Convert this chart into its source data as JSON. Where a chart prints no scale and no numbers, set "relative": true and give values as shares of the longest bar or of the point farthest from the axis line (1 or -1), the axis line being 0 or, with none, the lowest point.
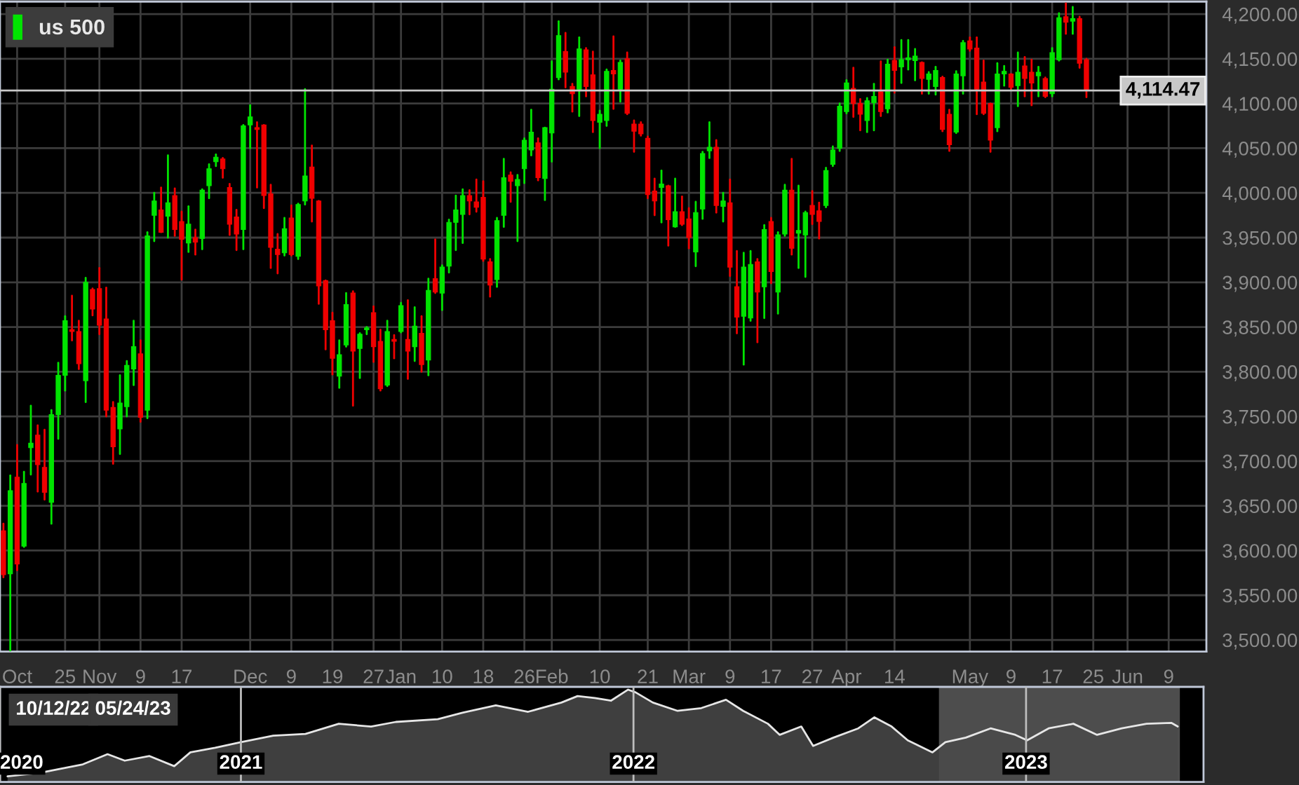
{
  "chart_data": [
    {
      "type": "candlestick",
      "legend": "top left",
      "grid": true,
      "categories": [
        null,
        null,
        "Oct",
        null,
        null,
        null,
        null,
        null,
        null,
        "25",
        null,
        null,
        null,
        null,
        "Nov",
        null,
        null,
        null,
        null,
        null,
        "9",
        null,
        null,
        null,
        null,
        null,
        "17",
        null,
        null,
        null,
        null,
        null,
        null,
        null,
        null,
        null,
        "Dec",
        null,
        null,
        null,
        null,
        null,
        "9",
        null,
        null,
        null,
        null,
        null,
        "19",
        null,
        null,
        null,
        null,
        null,
        "27",
        null,
        null,
        null,
        "Jan",
        null,
        null,
        null,
        null,
        null,
        "10",
        null,
        null,
        null,
        null,
        null,
        "18",
        null,
        null,
        null,
        null,
        null,
        "26",
        null,
        null,
        null,
        "Feb",
        null,
        null,
        null,
        null,
        null,
        null,
        "10",
        null,
        null,
        null,
        null,
        null,
        null,
        "21",
        null,
        null,
        null,
        null,
        null,
        "Mar",
        null,
        null,
        null,
        null,
        null,
        "9",
        null,
        null,
        null,
        null,
        null,
        "17",
        null,
        null,
        null,
        null,
        null,
        "27",
        null,
        null,
        null,
        null,
        "Apr",
        null,
        null,
        null,
        null,
        null,
        null,
        "14",
        null,
        null,
        null,
        null,
        null,
        null,
        null,
        null,
        null,
        null,
        "May",
        null,
        null,
        null,
        null,
        null,
        "9",
        null,
        null,
        null,
        null,
        null,
        "17",
        null,
        null,
        null,
        null,
        null,
        "25",
        null,
        null,
        null,
        null,
        "Jun",
        null,
        null,
        null,
        null,
        null,
        "9",
        null,
        null,
        null,
        null,
        null
      ],
      "series": [
        {
          "name": "us 500",
          "color": "#00e400",
          "ohlc": [
            [
              3622,
              3630,
              3570,
              3573
            ],
            [
              3574,
              3684,
              3488,
              3667
            ],
            [
              3682,
              3718,
              3578,
              3585
            ],
            [
              3605,
              3688,
              3604,
              3675
            ],
            [
              3715,
              3762,
              3685,
              3720
            ],
            [
              3729,
              3740,
              3666,
              3696
            ],
            [
              3693,
              3735,
              3657,
              3665
            ],
            [
              3654,
              3757,
              3630,
              3752
            ],
            [
              3752,
              3810,
              3725,
              3796
            ],
            [
              3796,
              3862,
              3779,
              3857
            ],
            [
              3847,
              3885,
              3835,
              3845
            ],
            [
              3845,
              3857,
              3803,
              3809
            ],
            [
              3790,
              3905,
              3766,
              3900
            ],
            [
              3892,
              3893,
              3863,
              3870
            ],
            [
              3893,
              3916,
              3842,
              3852
            ],
            [
              3859,
              3894,
              3750,
              3757
            ],
            [
              3760,
              3766,
              3697,
              3716
            ],
            [
              3736,
              3796,
              3708,
              3765
            ],
            [
              3761,
              3812,
              3750,
              3807
            ],
            [
              3803,
              3857,
              3785,
              3828
            ],
            [
              3820,
              3835,
              3744,
              3749
            ],
            [
              3757,
              3956,
              3748,
              3952
            ],
            [
              3975,
              4000,
              3946,
              3991
            ],
            [
              3981,
              4006,
              3956,
              3956
            ],
            [
              3974,
              4042,
              3950,
              3989
            ],
            [
              3997,
              4005,
              3952,
              3959
            ],
            [
              3968,
              3979,
              3903,
              3948
            ],
            [
              3944,
              3985,
              3934,
              3965
            ],
            [
              3950,
              3959,
              3931,
              3945
            ],
            [
              3949,
              4004,
              3937,
              4003
            ],
            [
              4008,
              4032,
              3994,
              4027
            ],
            [
              4035,
              4043,
              4030,
              4040
            ],
            [
              4038,
              4039,
              4017,
              4027
            ],
            [
              4006,
              4010,
              3953,
              3965
            ],
            [
              3973,
              3981,
              3936,
              3954
            ],
            [
              3959,
              4076,
              3937,
              4075
            ],
            [
              4076,
              4098,
              4050,
              4085
            ],
            [
              4073,
              4079,
              4006,
              4071
            ],
            [
              4076,
              4076,
              3983,
              3997
            ],
            [
              3999,
              4009,
              3916,
              3939
            ],
            [
              3937,
              3954,
              3910,
              3931
            ],
            [
              3933,
              3972,
              3930,
              3960
            ],
            [
              3972,
              3986,
              3930,
              3931
            ],
            [
              3929,
              3988,
              3926,
              3987
            ],
            [
              3991,
              4116,
              3987,
              4019
            ],
            [
              4029,
              4053,
              3968,
              3994
            ],
            [
              3991,
              3991,
              3876,
              3896
            ],
            [
              3902,
              3902,
              3825,
              3847
            ],
            [
              3857,
              3866,
              3797,
              3815
            ],
            [
              3795,
              3835,
              3782,
              3819
            ],
            [
              3830,
              3888,
              3828,
              3875
            ],
            [
              3888,
              3890,
              3762,
              3823
            ],
            [
              3826,
              3843,
              3793,
              3842
            ],
            [
              3847,
              3850,
              3842,
              3849
            ],
            [
              3866,
              3873,
              3811,
              3828
            ],
            [
              3834,
              3847,
              3779,
              3781
            ],
            [
              3785,
              3857,
              3784,
              3845
            ],
            [
              3836,
              3841,
              3815,
              3834
            ],
            [
              3845,
              3877,
              3844,
              3874
            ],
            [
              3836,
              3880,
              3792,
              3823
            ],
            [
              3828,
              3872,
              3812,
              3851
            ],
            [
              3843,
              3862,
              3800,
              3808
            ],
            [
              3813,
              3904,
              3796,
              3891
            ],
            [
              3904,
              3948,
              3888,
              3889
            ],
            [
              3888,
              3919,
              3869,
              3917
            ],
            [
              3918,
              3970,
              3911,
              3967
            ],
            [
              3967,
              3997,
              3936,
              3981
            ],
            [
              3976,
              4004,
              3944,
              3997
            ],
            [
              3997,
              4003,
              3976,
              3991
            ],
            [
              3990,
              4015,
              3979,
              3984
            ],
            [
              3995,
              4013,
              3924,
              3926
            ],
            [
              3923,
              3926,
              3884,
              3897
            ],
            [
              3903,
              3972,
              3895,
              3969
            ],
            [
              3975,
              4038,
              3962,
              4017
            ],
            [
              4020,
              4023,
              3990,
              4013
            ],
            [
              4008,
              4020,
              3946,
              4015
            ],
            [
              4027,
              4061,
              4011,
              4059
            ],
            [
              4048,
              4093,
              4042,
              4068
            ],
            [
              4056,
              4061,
              4014,
              4017
            ],
            [
              4016,
              4073,
              3992,
              4073
            ],
            [
              4067,
              4147,
              4035,
              4116
            ],
            [
              4129,
              4192,
              4127,
              4176
            ],
            [
              4158,
              4179,
              4118,
              4135
            ],
            [
              4119,
              4122,
              4091,
              4111
            ],
            [
              4116,
              4174,
              4086,
              4161
            ],
            [
              4160,
              4162,
              4108,
              4119
            ],
            [
              4132,
              4158,
              4068,
              4081
            ],
            [
              4079,
              4092,
              4050,
              4088
            ],
            [
              4081,
              4138,
              4075,
              4136
            ],
            [
              4137,
              4175,
              4094,
              4133
            ],
            [
              4116,
              4148,
              4102,
              4146
            ],
            [
              4150,
              4157,
              4088,
              4089
            ],
            [
              4077,
              4081,
              4046,
              4069
            ],
            [
              4077,
              4079,
              4064,
              4066
            ],
            [
              4061,
              4063,
              3994,
              3998
            ],
            [
              4002,
              4016,
              3975,
              3991
            ],
            [
              4006,
              4025,
              3967,
              4010
            ],
            [
              4008,
              4008,
              3941,
              3970
            ],
            [
              3962,
              4016,
              3962,
              3979
            ],
            [
              3979,
              3996,
              3964,
              3965
            ],
            [
              3971,
              3983,
              3938,
              3950
            ],
            [
              3934,
              3990,
              3918,
              3978
            ],
            [
              3982,
              4046,
              3971,
              4044
            ],
            [
              4047,
              4079,
              4039,
              4051
            ],
            [
              4051,
              4059,
              3978,
              3986
            ],
            [
              3985,
              4000,
              3968,
              3991
            ],
            [
              3989,
              4015,
              3907,
              3917
            ],
            [
              3895,
              3935,
              3843,
              3861
            ],
            [
              3862,
              3933,
              3808,
              3917
            ],
            [
              3860,
              3935,
              3857,
              3920
            ],
            [
              3923,
              3926,
              3833,
              3889
            ],
            [
              3895,
              3964,
              3860,
              3959
            ],
            [
              3968,
              3972,
              3899,
              3912
            ],
            [
              3889,
              3956,
              3865,
              3953
            ],
            [
              3954,
              4009,
              3952,
              4003
            ],
            [
              4003,
              4038,
              3931,
              3938
            ],
            [
              3955,
              4008,
              3916,
              3958
            ],
            [
              3953,
              3979,
              3906,
              3978
            ],
            [
              3986,
              4002,
              3965,
              3976
            ],
            [
              3980,
              3989,
              3949,
              3968
            ],
            [
              3986,
              4028,
              3984,
              4025
            ],
            [
              4032,
              4052,
              4030,
              4048
            ],
            [
              4050,
              4100,
              4047,
              4097
            ],
            [
              4091,
              4126,
              4089,
              4123
            ],
            [
              4117,
              4140,
              4085,
              4100
            ],
            [
              4100,
              4105,
              4070,
              4088
            ],
            [
              4081,
              4106,
              4068,
              4103
            ],
            [
              4101,
              4122,
              4070,
              4108
            ],
            [
              4113,
              4147,
              4086,
              4091
            ],
            [
              4094,
              4149,
              4090,
              4144
            ],
            [
              4148,
              4163,
              4112,
              4137
            ],
            [
              4141,
              4171,
              4123,
              4149
            ],
            [
              4149,
              4171,
              4138,
              4151
            ],
            [
              4148,
              4161,
              4126,
              4153
            ],
            [
              4146,
              4146,
              4111,
              4128
            ],
            [
              4127,
              4135,
              4111,
              4133
            ],
            [
              4119,
              4141,
              4110,
              4137
            ],
            [
              4129,
              4130,
              4069,
              4071
            ],
            [
              4088,
              4093,
              4047,
              4054
            ],
            [
              4068,
              4136,
              4067,
              4133
            ],
            [
              4131,
              4170,
              4111,
              4168
            ],
            [
              4170,
              4174,
              4159,
              4161
            ],
            [
              4162,
              4174,
              4088,
              4116
            ],
            [
              4124,
              4148,
              4088,
              4089
            ],
            [
              4100,
              4100,
              4046,
              4059
            ],
            [
              4073,
              4145,
              4069,
              4133
            ],
            [
              4133,
              4142,
              4120,
              4136
            ],
            [
              4133,
              4133,
              4115,
              4118
            ],
            [
              4120,
              4157,
              4097,
              4135
            ],
            [
              4142,
              4152,
              4108,
              4128
            ],
            [
              4135,
              4149,
              4098,
              4123
            ],
            [
              4131,
              4141,
              4108,
              4135
            ],
            [
              4128,
              4129,
              4107,
              4108
            ],
            [
              4111,
              4162,
              4108,
              4157
            ],
            [
              4149,
              4201,
              4148,
              4196
            ],
            [
              4197,
              4212,
              4178,
              4191
            ],
            [
              4192,
              4208,
              4178,
              4195
            ],
            [
              4195,
              4197,
              4140,
              4145
            ],
            [
              4149,
              4150,
              4107,
              4114.47
            ],
            null,
            null,
            null,
            null,
            null,
            null,
            null,
            null,
            null,
            null,
            null,
            null,
            null,
            null,
            null,
            null,
            null
          ],
          "colors": [
            "#f00000",
            "#00e400",
            "#f00000",
            "#00e400",
            "#00e400",
            "#f00000",
            "#f00000",
            "#00e400",
            "#00e400",
            "#00e400",
            "#f00000",
            "#f00000",
            "#00e400",
            "#f00000",
            "#f00000",
            "#f00000",
            "#f00000",
            "#00e400",
            "#00e400",
            "#00e400",
            "#f00000",
            "#00e400",
            "#00e400",
            "#f00000",
            "#00e400",
            "#f00000",
            "#f00000",
            "#00e400",
            "#f00000",
            "#00e400",
            "#00e400",
            "#00e400",
            "#f00000",
            "#f00000",
            "#f00000",
            "#00e400",
            "#00e400",
            "#f00000",
            "#f00000",
            "#f00000",
            "#f00000",
            "#00e400",
            "#f00000",
            "#00e400",
            "#00e400",
            "#f00000",
            "#f00000",
            "#f00000",
            "#f00000",
            "#00e400",
            "#00e400",
            "#f00000",
            "#00e400",
            "#00e400",
            "#f00000",
            "#f00000",
            "#00e400",
            "#f00000",
            "#00e400",
            "#f00000",
            "#00e400",
            "#f00000",
            "#00e400",
            "#f00000",
            "#00e400",
            "#00e400",
            "#00e400",
            "#00e400",
            "#f00000",
            "#f00000",
            "#f00000",
            "#f00000",
            "#00e400",
            "#00e400",
            "#f00000",
            "#00e400",
            "#00e400",
            "#00e400",
            "#f00000",
            "#00e400",
            "#00e400",
            "#00e400",
            "#f00000",
            "#f00000",
            "#00e400",
            "#f00000",
            "#f00000",
            "#00e400",
            "#00e400",
            "#f00000",
            "#00e400",
            "#f00000",
            "#f00000",
            "#f00000",
            "#f00000",
            "#f00000",
            "#00e400",
            "#f00000",
            "#00e400",
            "#f00000",
            "#f00000",
            "#00e400",
            "#00e400",
            "#00e400",
            "#f00000",
            "#00e400",
            "#f00000",
            "#f00000",
            "#00e400",
            "#00e400",
            "#f00000",
            "#00e400",
            "#f00000",
            "#00e400",
            "#00e400",
            "#f00000",
            "#00e400",
            "#00e400",
            "#f00000",
            "#f00000",
            "#00e400",
            "#00e400",
            "#00e400",
            "#00e400",
            "#f00000",
            "#f00000",
            "#00e400",
            "#00e400",
            "#f00000",
            "#00e400",
            "#f00000",
            "#00e400",
            "#00e400",
            "#00e400",
            "#f00000",
            "#00e400",
            "#00e400",
            "#f00000",
            "#f00000",
            "#00e400",
            "#00e400",
            "#f00000",
            "#f00000",
            "#f00000",
            "#f00000",
            "#00e400",
            "#00e400",
            "#f00000",
            "#00e400",
            "#f00000",
            "#f00000",
            "#00e400",
            "#f00000",
            "#00e400",
            "#00e400",
            "#f00000",
            "#00e400",
            "#f00000",
            "#f00000",
            null,
            null,
            null,
            null,
            null,
            null,
            null,
            null,
            null,
            null,
            null,
            null,
            null,
            null,
            null,
            null,
            null
          ]
        }
      ],
      "ylim": [
        3487,
        4214
      ],
      "yticks": [
        {
          "value": 3500,
          "label": "3,500.00"
        },
        {
          "value": 3550,
          "label": "3,550.00"
        },
        {
          "value": 3600,
          "label": "3,600.00"
        },
        {
          "value": 3650,
          "label": "3,650.00"
        },
        {
          "value": 3700,
          "label": "3,700.00"
        },
        {
          "value": 3750,
          "label": "3,750.00"
        },
        {
          "value": 3800,
          "label": "3,800.00"
        },
        {
          "value": 3850,
          "label": "3,850.00"
        },
        {
          "value": 3900,
          "label": "3,900.00"
        },
        {
          "value": 3950,
          "label": "3,950.00"
        },
        {
          "value": 4000,
          "label": "4,000.00"
        },
        {
          "value": 4050,
          "label": "4,050.00"
        },
        {
          "value": 4100,
          "label": "4,100.00"
        },
        {
          "value": 4150,
          "label": "4,150.00"
        },
        {
          "value": 4200,
          "label": "4,200.00"
        }
      ],
      "ref_lines": [
        {
          "axis": "y",
          "value": 4114.47,
          "label": "4,114.47",
          "color": "#c8c8c8"
        }
      ]
    },
    {
      "type": "area",
      "relative": true,
      "grid": "x",
      "tick_labels": "x",
      "x": [
        "2020-05-29",
        "2020-06-29",
        "2020-08-07",
        "2020-08-30",
        "2020-09-15",
        "2020-10-08",
        "2020-10-31",
        "2020-11-15",
        "2020-12-08",
        "2021-01-01",
        "2021-01-31",
        "2021-03-02",
        "2021-04-02",
        "2021-05-02",
        "2021-05-25",
        "2021-07-03",
        "2021-07-26",
        "2021-08-26",
        "2021-09-25",
        "2021-10-26",
        "2021-11-10",
        "2021-11-26",
        "2021-12-11",
        "2021-12-27",
        "2022-01-03",
        "2022-01-19",
        "2022-02-11",
        "2022-03-05",
        "2022-03-28",
        "2022-04-13",
        "2022-05-06",
        "2022-05-17",
        "2022-06-06",
        "2022-06-17",
        "2022-07-06",
        "2022-07-29",
        "2022-08-13",
        "2022-08-29",
        "2022-09-13",
        "2022-10-06",
        "2022-10-18",
        "2022-11-06",
        "2022-11-29",
        "2022-12-22",
        "2023-01-02",
        "2023-01-22",
        "2023-02-14",
        "2023-03-08",
        "2023-03-31",
        "2023-04-23",
        "2023-05-16",
        "2023-05-22"
      ],
      "series": [
        {
          "color": "#e6e6e6",
          "values": [
            0.06,
            0.1,
            0.19,
            0.3,
            0.23,
            0.28,
            0.17,
            0.32,
            0.37,
            0.43,
            0.5,
            0.52,
            0.63,
            0.6,
            0.65,
            0.68,
            0.75,
            0.83,
            0.76,
            0.86,
            0.93,
            0.91,
            0.88,
            1.0,
            0.97,
            0.86,
            0.77,
            0.8,
            0.89,
            0.77,
            0.63,
            0.51,
            0.6,
            0.39,
            0.48,
            0.58,
            0.7,
            0.6,
            0.45,
            0.32,
            0.43,
            0.48,
            0.58,
            0.51,
            0.45,
            0.58,
            0.63,
            0.51,
            0.58,
            0.63,
            0.64,
            0.6
          ]
        }
      ],
      "xlim": [
        "2020-05-22",
        "2023-06-15"
      ],
      "xticks": [
        {
          "value": "2020-05-22",
          "label": "2020"
        },
        {
          "value": "2021-01-01",
          "label": "2021"
        },
        {
          "value": "2022-01-01",
          "label": "2022"
        },
        {
          "value": "2023-01-01",
          "label": "2023"
        }
      ],
      "bands": [
        {
          "axis": "x",
          "from": "2022-10-12",
          "to": "2023-05-24",
          "color": "#ffffff"
        }
      ],
      "annotations": [
        "10/12/22",
        "05/24/23"
      ]
    }
  ]
}
